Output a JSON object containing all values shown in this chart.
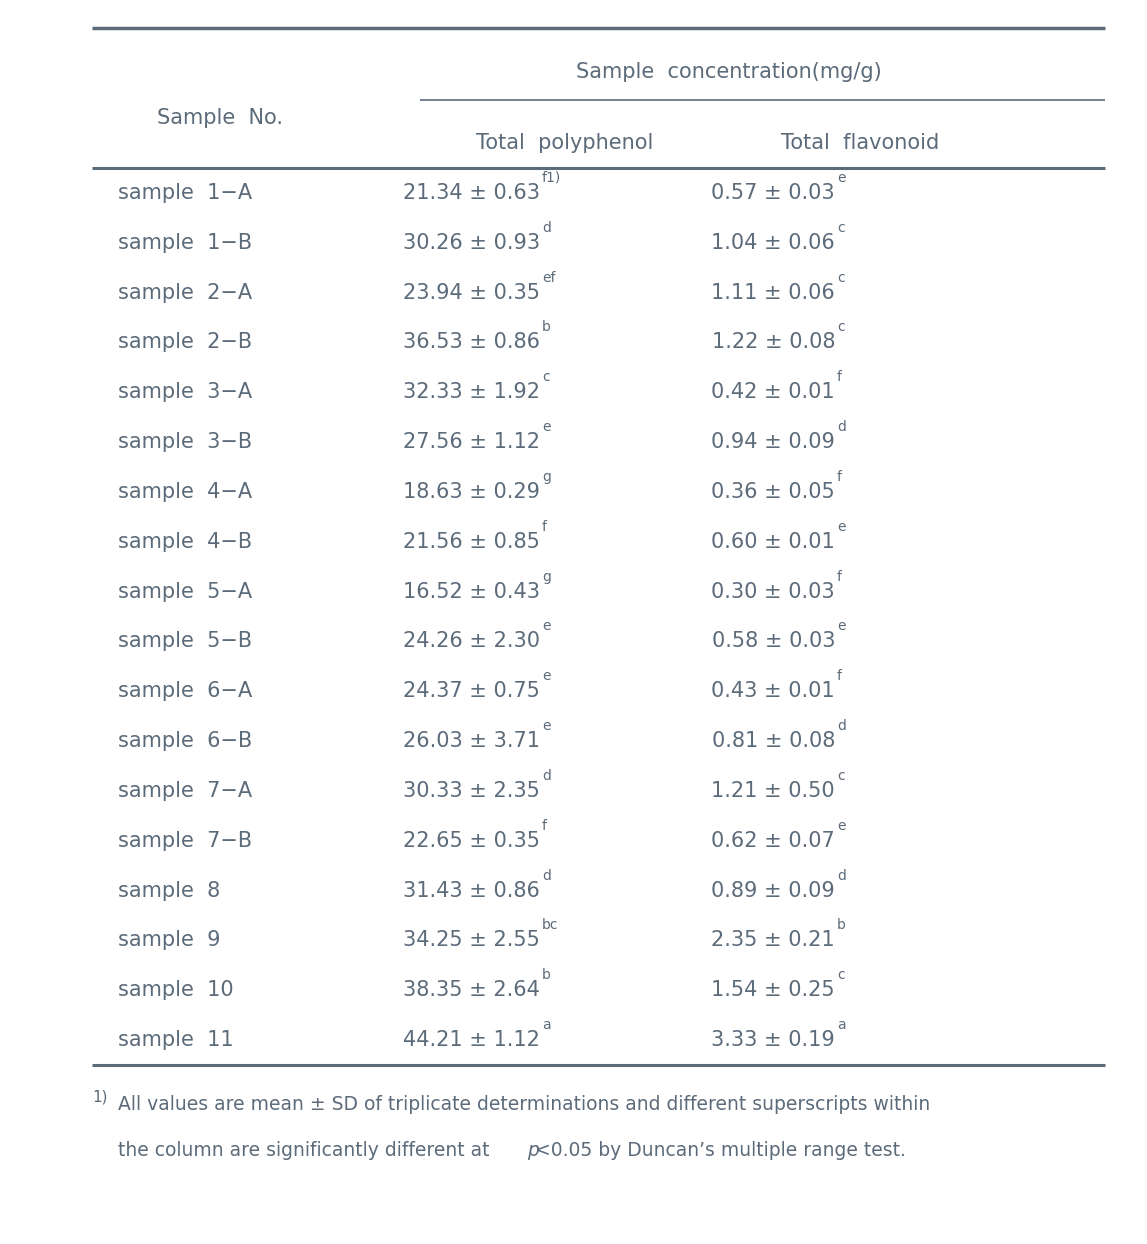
{
  "title": "Sample  concentration(mg/g)",
  "col1_header": "Sample  No.",
  "col2_header": "Total  polyphenol",
  "col3_header": "Total  flavonoid",
  "rows": [
    [
      "sample  1−A",
      "21.34 ± 0.63",
      "f1)",
      "0.57 ± 0.03",
      "e"
    ],
    [
      "sample  1−B",
      "30.26 ± 0.93",
      "d",
      "1.04 ± 0.06",
      "c"
    ],
    [
      "sample  2−A",
      "23.94 ± 0.35",
      "ef",
      "1.11 ± 0.06",
      "c"
    ],
    [
      "sample  2−B",
      "36.53 ± 0.86",
      "b",
      "1.22 ± 0.08",
      "c"
    ],
    [
      "sample  3−A",
      "32.33 ± 1.92",
      "c",
      "0.42 ± 0.01",
      "f"
    ],
    [
      "sample  3−B",
      "27.56 ± 1.12",
      "e",
      "0.94 ± 0.09",
      "d"
    ],
    [
      "sample  4−A",
      "18.63 ± 0.29",
      "g",
      "0.36 ± 0.05",
      "f"
    ],
    [
      "sample  4−B",
      "21.56 ± 0.85",
      "f",
      "0.60 ± 0.01",
      "e"
    ],
    [
      "sample  5−A",
      "16.52 ± 0.43",
      "g",
      "0.30 ± 0.03",
      "f"
    ],
    [
      "sample  5−B",
      "24.26 ± 2.30",
      "e",
      "0.58 ± 0.03",
      "e"
    ],
    [
      "sample  6−A",
      "24.37 ± 0.75",
      "e",
      "0.43 ± 0.01",
      "f"
    ],
    [
      "sample  6−B",
      "26.03 ± 3.71",
      "e",
      "0.81 ± 0.08",
      "d"
    ],
    [
      "sample  7−A",
      "30.33 ± 2.35",
      "d",
      "1.21 ± 0.50",
      "c"
    ],
    [
      "sample  7−B",
      "22.65 ± 0.35",
      "f",
      "0.62 ± 0.07",
      "e"
    ],
    [
      "sample  8",
      "31.43 ± 0.86",
      "d",
      "0.89 ± 0.09",
      "d"
    ],
    [
      "sample  9",
      "34.25 ± 2.55",
      "bc",
      "2.35 ± 0.21",
      "b"
    ],
    [
      "sample  10",
      "38.35 ± 2.64",
      "b",
      "1.54 ± 0.25",
      "c"
    ],
    [
      "sample  11",
      "44.21 ± 1.12",
      "a",
      "3.33 ± 0.19",
      "a"
    ]
  ],
  "footnote_sup": "1)",
  "footnote_line1": "All values are mean ± SD of triplicate determinations and different superscripts within",
  "footnote_line2_pre": "the column are significantly different at ",
  "footnote_italic": "p",
  "footnote_line2_post": "<0.05 by Duncan’s multiple range test.",
  "text_color": "#5c6b7a",
  "line_color": "#5c6b7a",
  "bg_color": "#ffffff",
  "fs_main": 15,
  "fs_sup": 10,
  "fs_fn": 13.5
}
